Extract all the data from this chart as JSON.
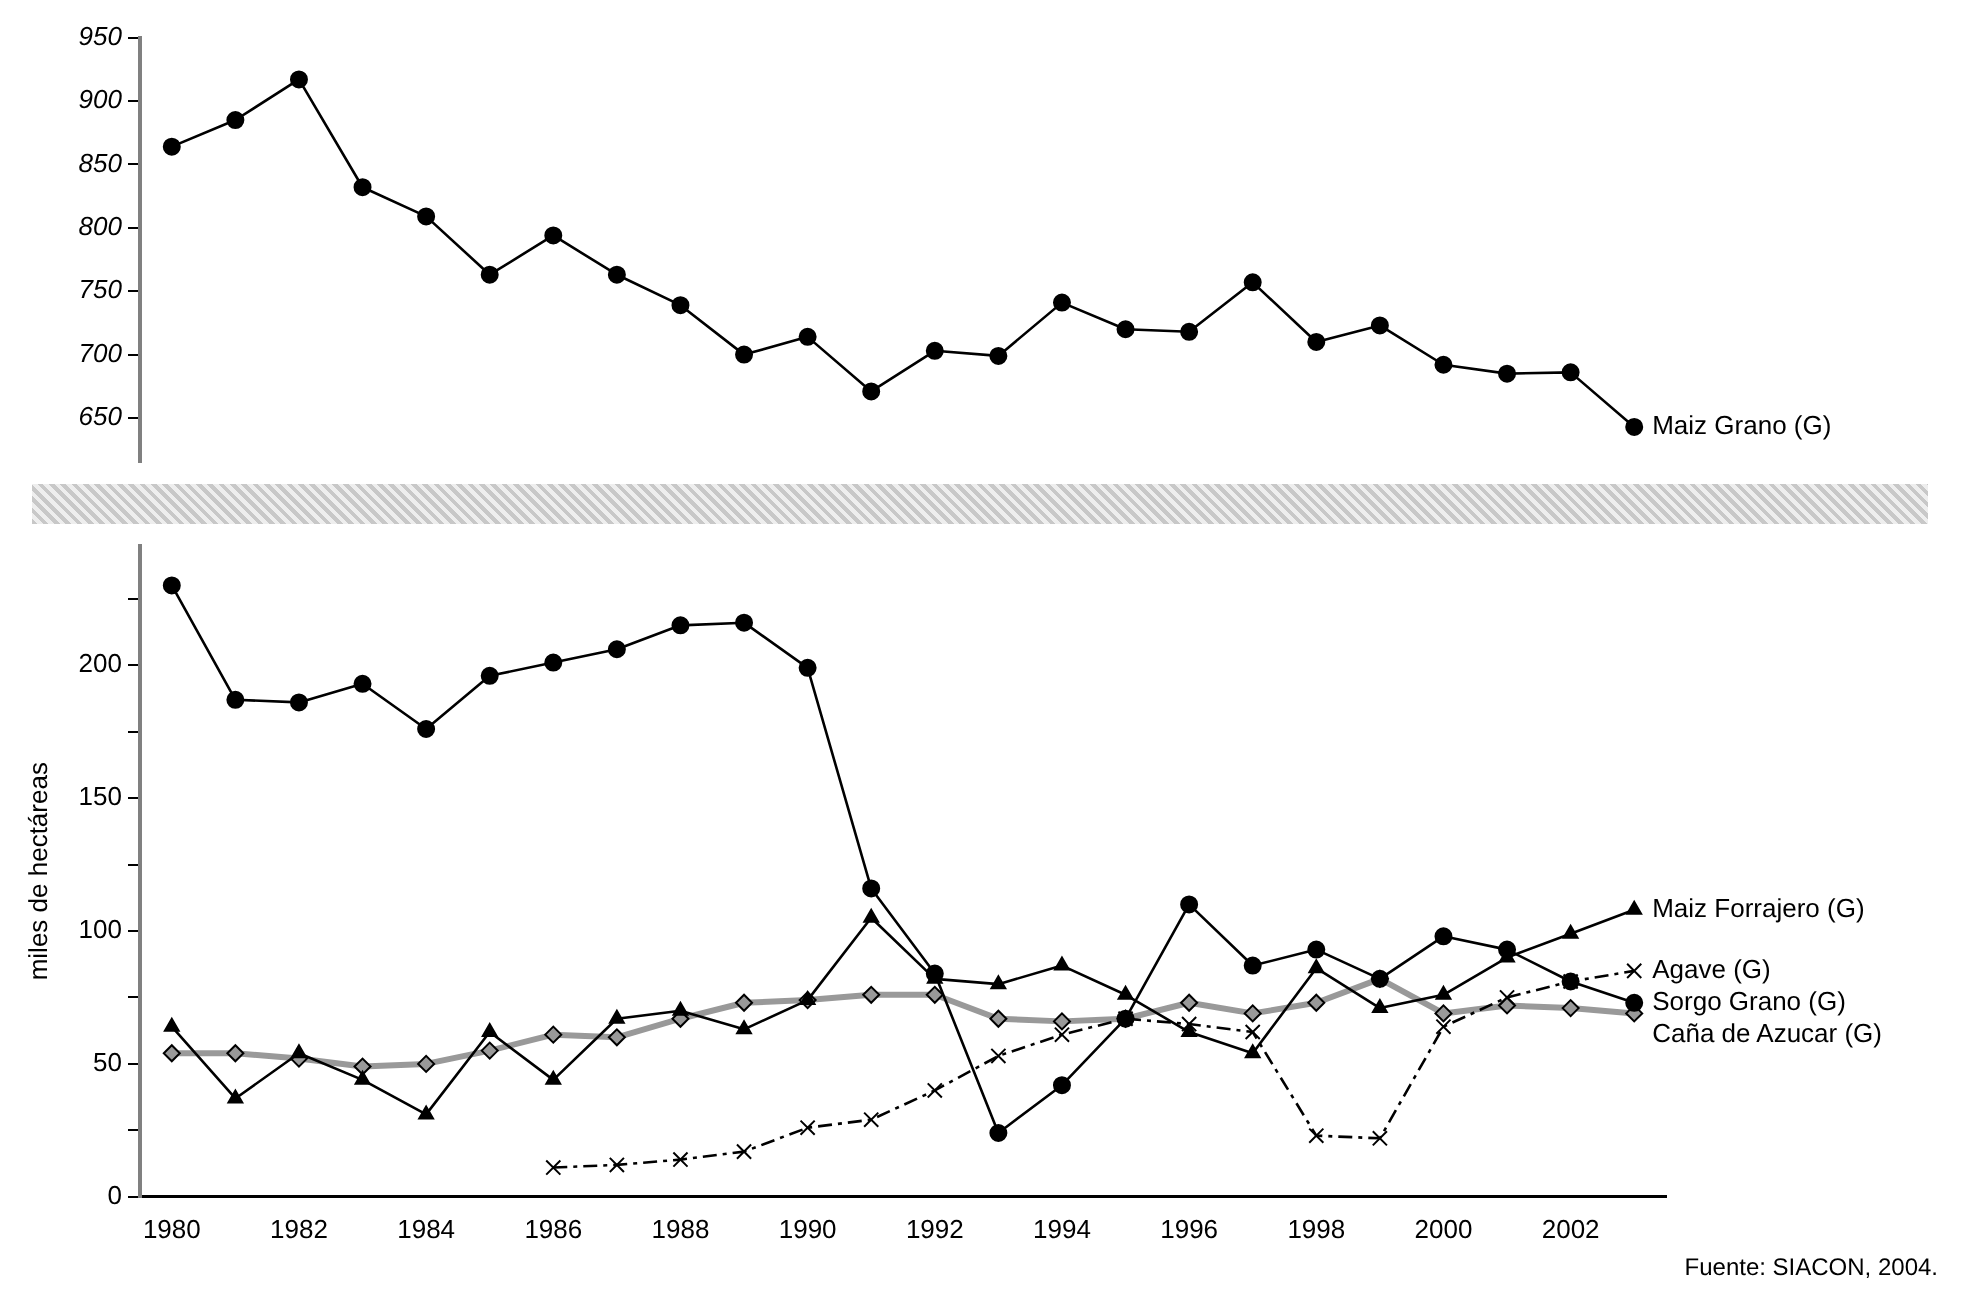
{
  "chart_data": [
    {
      "type": "line",
      "categories": [
        "1980",
        null,
        "1982",
        null,
        "1984",
        null,
        "1986",
        null,
        "1988",
        null,
        "1990",
        null,
        "1992",
        null,
        "1994",
        null,
        "1996",
        null,
        "1998",
        null,
        "2000",
        null,
        "2002",
        null
      ],
      "series": [
        {
          "name": "Maiz Grano (G)",
          "color": "#000000",
          "marker": "circle",
          "values": [
            864,
            885,
            917,
            832,
            809,
            763,
            794,
            763,
            739,
            700,
            714,
            671,
            703,
            699,
            741,
            720,
            718,
            757,
            710,
            723,
            692,
            685,
            686,
            643
          ]
        }
      ],
      "ylim": [
        615,
        950
      ],
      "yticks": [
        650,
        700,
        750,
        800,
        850,
        900,
        950
      ],
      "tick_labels": "y"
    },
    {
      "type": "line",
      "ylabel": "miles de hectáreas",
      "categories": [
        "1980",
        null,
        "1982",
        null,
        "1984",
        null,
        "1986",
        null,
        "1988",
        null,
        "1990",
        null,
        "1992",
        null,
        "1994",
        null,
        "1996",
        null,
        "1998",
        null,
        "2000",
        null,
        "2002",
        null
      ],
      "series": [
        {
          "name": "Sorgo Grano (G)",
          "color": "#000000",
          "marker": "circle",
          "values": [
            230,
            187,
            186,
            193,
            176,
            196,
            201,
            206,
            215,
            216,
            199,
            116,
            84,
            24,
            42,
            67,
            110,
            87,
            93,
            82,
            98,
            93,
            81,
            73
          ]
        },
        {
          "name": "Maiz Forrajero (G)",
          "color": "#000000",
          "marker": "triangle",
          "values": [
            64,
            37,
            54,
            44,
            31,
            62,
            44,
            67,
            70,
            63,
            74,
            105,
            82,
            80,
            87,
            76,
            62,
            54,
            86,
            71,
            76,
            90,
            99,
            108
          ]
        },
        {
          "name": "Agave (G)",
          "color": "#000000",
          "marker": "cross",
          "line_style": "dashed",
          "values": [
            null,
            null,
            null,
            null,
            null,
            null,
            11,
            12,
            14,
            17,
            26,
            29,
            40,
            53,
            61,
            67,
            65,
            62,
            23,
            22,
            64,
            75,
            81,
            85
          ]
        },
        {
          "name": "Caña de Azucar (G)",
          "color": "#999999",
          "marker": "diamond",
          "values": [
            54,
            54,
            52,
            49,
            50,
            55,
            61,
            60,
            67,
            73,
            74,
            76,
            76,
            67,
            66,
            67,
            73,
            69,
            73,
            82,
            69,
            72,
            71,
            69
          ]
        }
      ],
      "ylim": [
        0,
        245
      ],
      "yticks": [
        0,
        {
          "value": 25,
          "label": null
        },
        50,
        {
          "value": 75,
          "label": null
        },
        100,
        {
          "value": 125,
          "label": null
        },
        150,
        {
          "value": 175,
          "label": null
        },
        200,
        {
          "value": 225,
          "label": null
        }
      ],
      "annotations": [
        "Fuente: SIACON, 2004."
      ]
    }
  ]
}
